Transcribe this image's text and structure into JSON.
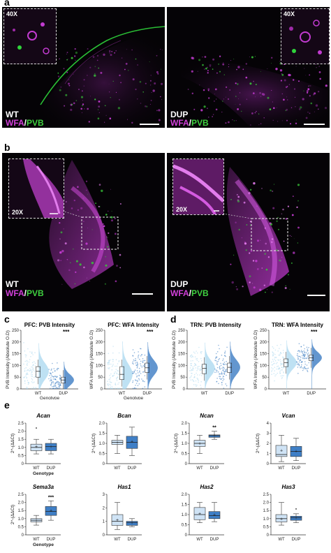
{
  "panels": {
    "a": "a",
    "b": "b",
    "c": "c",
    "d": "d",
    "e": "e"
  },
  "microscopy": {
    "a_left": {
      "group": "WT",
      "wfa": "WFA",
      "slash": "/",
      "pvb": "PVB",
      "mag": "40X"
    },
    "a_right": {
      "group": "DUP",
      "wfa": "WFA",
      "slash": "/",
      "pvb": "PVB",
      "mag": "40X"
    },
    "b_left": {
      "group": "WT",
      "wfa": "WFA",
      "slash": "/",
      "pvb": "PVB",
      "mag": "20X"
    },
    "b_right": {
      "group": "DUP",
      "wfa": "WFA",
      "slash": "/",
      "pvb": "PVB",
      "mag": "20X"
    }
  },
  "colors": {
    "wt_fill": "#a9d7ef",
    "dup_fill": "#2f74c0",
    "wt_box": "#cfe3f5",
    "dup_box": "#3f7fc6",
    "magenta": "#c23bd0",
    "green": "#39c83a"
  },
  "chart_data": [
    {
      "id": "c1",
      "type": "violin",
      "title": "PFC: PVB Intensity",
      "ylabel": "PVB Intensity (Absolute O.D)",
      "xlabel": "Genotype",
      "ylim": [
        0,
        250
      ],
      "yticks": [
        0,
        50,
        100,
        150,
        200,
        250
      ],
      "categories": [
        "WT",
        "DUP"
      ],
      "medians": [
        75,
        38
      ],
      "q1": [
        50,
        25
      ],
      "q3": [
        95,
        50
      ],
      "significance": "***"
    },
    {
      "id": "c2",
      "type": "violin",
      "title": "PFC: WFA Intensity",
      "ylabel": "WFA Intensity (Absolute O.D)",
      "xlabel": "Genotype",
      "ylim": [
        0,
        250
      ],
      "yticks": [
        0,
        50,
        100,
        150,
        200,
        250
      ],
      "categories": [
        "WT",
        "DUP"
      ],
      "medians": [
        62,
        90
      ],
      "q1": [
        40,
        70
      ],
      "q3": [
        95,
        110
      ],
      "significance": "***"
    },
    {
      "id": "d1",
      "type": "violin",
      "title": "TRN: PVB Intensity",
      "ylabel": "PVB Intensity (Absolute O.D)",
      "xlabel": "",
      "ylim": [
        0,
        250
      ],
      "yticks": [
        0,
        50,
        100,
        150,
        200,
        250
      ],
      "categories": [
        "WT",
        "DUP"
      ],
      "medians": [
        88,
        92
      ],
      "q1": [
        65,
        70
      ],
      "q3": [
        105,
        110
      ],
      "significance": ""
    },
    {
      "id": "d2",
      "type": "violin",
      "title": "TRN: WFA Intensity",
      "ylabel": "WFA Intensity (Absolute O.D)",
      "xlabel": "",
      "ylim": [
        0,
        250
      ],
      "yticks": [
        0,
        50,
        100,
        150,
        200,
        250
      ],
      "categories": [
        "WT",
        "DUP"
      ],
      "medians": [
        112,
        133
      ],
      "q1": [
        95,
        120
      ],
      "q3": [
        128,
        145
      ],
      "significance": "***"
    },
    {
      "id": "e1",
      "type": "box",
      "title": "Acan",
      "ylabel": "2^-(ΔΔCt)",
      "xlabel": "Genotype",
      "ylim": [
        0,
        2.5
      ],
      "yticks": [
        "0",
        "0.5",
        "1.0",
        "1.5",
        "2.0",
        "2.5"
      ],
      "categories": [
        "WT",
        "DUP"
      ],
      "min": [
        0.6,
        0.6
      ],
      "q1": [
        0.8,
        0.8
      ],
      "median": [
        1.0,
        1.05
      ],
      "q3": [
        1.2,
        1.25
      ],
      "max": [
        1.5,
        1.5
      ],
      "mean": [
        1.05,
        1.05
      ],
      "outliers": [
        [
          2.2
        ],
        []
      ],
      "significance": ""
    },
    {
      "id": "e2",
      "type": "box",
      "title": "Bcan",
      "ylabel": "2^-(ΔΔCt)",
      "xlabel": "",
      "ylim": [
        0,
        2.0
      ],
      "yticks": [
        "0",
        "0.5",
        "1.0",
        "1.5",
        "2.0"
      ],
      "categories": [
        "WT",
        "DUP"
      ],
      "min": [
        0.5,
        0.4
      ],
      "q1": [
        0.95,
        0.75
      ],
      "median": [
        1.05,
        1.05
      ],
      "q3": [
        1.15,
        1.35
      ],
      "max": [
        1.4,
        1.8
      ],
      "mean": [
        1.05,
        1.1
      ],
      "outliers": [
        [],
        []
      ],
      "significance": ""
    },
    {
      "id": "e3",
      "type": "box",
      "title": "Ncan",
      "ylabel": "2^-(ΔΔCt)",
      "xlabel": "",
      "ylim": [
        0,
        2.0
      ],
      "yticks": [
        "0",
        "0.5",
        "1.0",
        "1.5",
        "2.0"
      ],
      "categories": [
        "WT",
        "DUP"
      ],
      "min": [
        0.5,
        1.2
      ],
      "q1": [
        0.85,
        1.3
      ],
      "median": [
        1.0,
        1.38
      ],
      "q3": [
        1.15,
        1.42
      ],
      "max": [
        1.4,
        1.6
      ],
      "mean": [
        1.0,
        1.4
      ],
      "outliers": [
        [],
        []
      ],
      "significance": "**"
    },
    {
      "id": "e4",
      "type": "box",
      "title": "Vcan",
      "ylabel": "2^-(ΔΔCt)",
      "xlabel": "",
      "ylim": [
        0,
        4
      ],
      "yticks": [
        "0",
        "1",
        "2",
        "3",
        "4"
      ],
      "categories": [
        "WT",
        "DUP"
      ],
      "min": [
        0.2,
        0.3
      ],
      "q1": [
        0.7,
        0.7
      ],
      "median": [
        0.9,
        1.2
      ],
      "q3": [
        1.8,
        1.7
      ],
      "max": [
        2.8,
        2.5
      ],
      "mean": [
        1.3,
        1.25
      ],
      "outliers": [
        [],
        []
      ],
      "significance": ""
    },
    {
      "id": "e5",
      "type": "box",
      "title": "Sema3a",
      "ylabel": "2^-(ΔΔCt)",
      "xlabel": "Genotype",
      "ylim": [
        0,
        2.5
      ],
      "yticks": [
        "0",
        "0.5",
        "1.0",
        "1.5",
        "2.0",
        "2.5"
      ],
      "categories": [
        "WT",
        "DUP"
      ],
      "min": [
        0.6,
        0.9
      ],
      "q1": [
        0.8,
        1.2
      ],
      "median": [
        0.9,
        1.45
      ],
      "q3": [
        1.0,
        1.75
      ],
      "max": [
        1.2,
        2.1
      ],
      "mean": [
        0.9,
        1.5
      ],
      "outliers": [
        [],
        []
      ],
      "significance": "***"
    },
    {
      "id": "e6",
      "type": "box",
      "title": "Has1",
      "ylabel": "",
      "xlabel": "",
      "ylim": [
        0,
        3
      ],
      "yticks": [
        "0",
        "1",
        "2",
        "3"
      ],
      "categories": [
        "WT",
        "DUP"
      ],
      "min": [
        0.4,
        0.6
      ],
      "q1": [
        0.7,
        0.7
      ],
      "median": [
        1.0,
        0.9
      ],
      "q3": [
        1.5,
        1.0
      ],
      "max": [
        2.4,
        1.2
      ],
      "mean": [
        1.1,
        0.9
      ],
      "outliers": [
        [],
        []
      ],
      "significance": ""
    },
    {
      "id": "e7",
      "type": "box",
      "title": "Has2",
      "ylabel": "",
      "xlabel": "",
      "ylim": [
        0,
        2.0
      ],
      "yticks": [
        "0",
        "0.5",
        "1.0",
        "1.5",
        "2.0"
      ],
      "categories": [
        "WT",
        "DUP"
      ],
      "min": [
        0.6,
        0.65
      ],
      "q1": [
        0.75,
        0.8
      ],
      "median": [
        1.0,
        0.95
      ],
      "q3": [
        1.35,
        1.15
      ],
      "max": [
        1.6,
        1.6
      ],
      "mean": [
        1.05,
        1.0
      ],
      "outliers": [
        [],
        []
      ],
      "significance": ""
    },
    {
      "id": "e8",
      "type": "box",
      "title": "Has3",
      "ylabel": "",
      "xlabel": "",
      "ylim": [
        0,
        2.5
      ],
      "yticks": [
        "0",
        "0.5",
        "1.0",
        "1.5",
        "2.0",
        "2.5"
      ],
      "categories": [
        "WT",
        "DUP"
      ],
      "min": [
        0.6,
        0.75
      ],
      "q1": [
        0.8,
        0.9
      ],
      "median": [
        1.0,
        1.05
      ],
      "q3": [
        1.25,
        1.15
      ],
      "max": [
        2.0,
        1.3
      ],
      "mean": [
        1.0,
        1.05
      ],
      "outliers": [
        [],
        [
          1.6
        ]
      ],
      "significance": ""
    }
  ]
}
